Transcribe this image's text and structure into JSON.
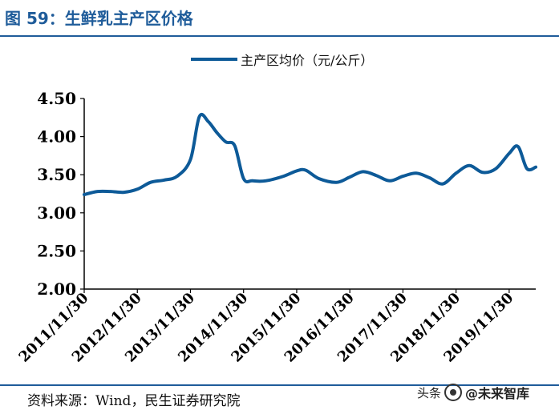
{
  "header": {
    "title": "图 59：生鲜乳主产区价格"
  },
  "footer": {
    "source": "资料来源：Wind，民生证券研究院",
    "watermark_prefix": "头条",
    "watermark_handle": "@未来智库"
  },
  "colors": {
    "line": "#0d5a98",
    "title": "#1f5c9a"
  },
  "chart_data": {
    "type": "line",
    "title": "",
    "xlabel": "",
    "ylabel": "",
    "ylim": [
      2.0,
      4.5
    ],
    "yticks": [
      "2.00",
      "2.50",
      "3.00",
      "3.50",
      "4.00",
      "4.50"
    ],
    "xticks": [
      "2011/11/30",
      "2012/11/30",
      "2013/11/30",
      "2014/11/30",
      "2015/11/30",
      "2016/11/30",
      "2017/11/30",
      "2018/11/30",
      "2019/11/30"
    ],
    "grid": false,
    "legend_position": "top-center",
    "series": [
      {
        "name": "主产区均价（元/公斤）",
        "x": [
          "2011-11",
          "2012-02",
          "2012-05",
          "2012-08",
          "2012-11",
          "2013-02",
          "2013-05",
          "2013-08",
          "2013-11",
          "2014-01",
          "2014-03",
          "2014-05",
          "2014-07",
          "2014-09",
          "2014-11",
          "2015-01",
          "2015-04",
          "2015-08",
          "2015-11",
          "2016-01",
          "2016-04",
          "2016-08",
          "2016-11",
          "2017-02",
          "2017-05",
          "2017-08",
          "2017-11",
          "2018-02",
          "2018-05",
          "2018-08",
          "2018-11",
          "2019-02",
          "2019-05",
          "2019-08",
          "2019-11",
          "2020-01",
          "2020-03",
          "2020-05"
        ],
        "values": [
          3.24,
          3.28,
          3.28,
          3.27,
          3.31,
          3.4,
          3.43,
          3.48,
          3.7,
          4.26,
          4.2,
          4.05,
          3.93,
          3.88,
          3.45,
          3.42,
          3.42,
          3.48,
          3.55,
          3.56,
          3.45,
          3.4,
          3.47,
          3.54,
          3.49,
          3.42,
          3.48,
          3.52,
          3.46,
          3.38,
          3.52,
          3.62,
          3.53,
          3.58,
          3.78,
          3.87,
          3.58,
          3.6
        ]
      }
    ]
  }
}
